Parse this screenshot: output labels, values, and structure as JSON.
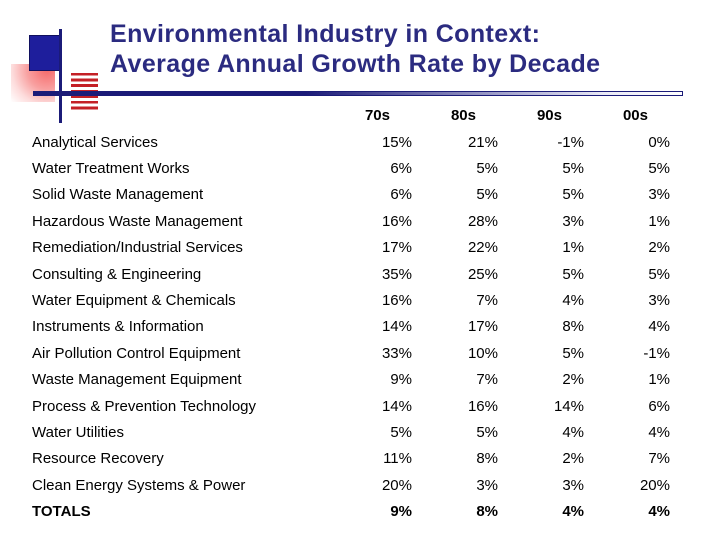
{
  "title": {
    "line1": "Environmental Industry in Context:",
    "line2": "Average Annual Growth Rate by Decade"
  },
  "colors": {
    "title": "#2b2b80",
    "accent_navy": "#1b1b78",
    "square_blue": "#1e1e9c",
    "stripe_red": "#c42026",
    "pink": "#f66a6a",
    "text": "#000000"
  },
  "table": {
    "headers": [
      "70s",
      "80s",
      "90s",
      "00s"
    ],
    "rows": [
      {
        "label": "Analytical Services",
        "values": [
          "15%",
          "21%",
          "-1%",
          "0%"
        ],
        "bold": false
      },
      {
        "label": "Water Treatment Works",
        "values": [
          "6%",
          "5%",
          "5%",
          "5%"
        ],
        "bold": false
      },
      {
        "label": "Solid Waste Management",
        "values": [
          "6%",
          "5%",
          "5%",
          "3%"
        ],
        "bold": false
      },
      {
        "label": "Hazardous Waste Management",
        "values": [
          "16%",
          "28%",
          "3%",
          "1%"
        ],
        "bold": false
      },
      {
        "label": "Remediation/Industrial Services",
        "values": [
          "17%",
          "22%",
          "1%",
          "2%"
        ],
        "bold": false
      },
      {
        "label": "Consulting & Engineering",
        "values": [
          "35%",
          "25%",
          "5%",
          "5%"
        ],
        "bold": false
      },
      {
        "label": "Water Equipment & Chemicals",
        "values": [
          "16%",
          "7%",
          "4%",
          "3%"
        ],
        "bold": false
      },
      {
        "label": "Instruments & Information",
        "values": [
          "14%",
          "17%",
          "8%",
          "4%"
        ],
        "bold": false
      },
      {
        "label": "Air Pollution Control Equipment",
        "values": [
          "33%",
          "10%",
          "5%",
          "-1%"
        ],
        "bold": false
      },
      {
        "label": "Waste Management Equipment",
        "values": [
          "9%",
          "7%",
          "2%",
          "1%"
        ],
        "bold": false
      },
      {
        "label": "Process & Prevention Technology",
        "values": [
          "14%",
          "16%",
          "14%",
          "6%"
        ],
        "bold": false
      },
      {
        "label": "Water Utilities",
        "values": [
          "5%",
          "5%",
          "4%",
          "4%"
        ],
        "bold": false
      },
      {
        "label": "Resource Recovery",
        "values": [
          "11%",
          "8%",
          "2%",
          "7%"
        ],
        "bold": false
      },
      {
        "label": "Clean Energy Systems & Power",
        "values": [
          "20%",
          "3%",
          "3%",
          "20%"
        ],
        "bold": false
      },
      {
        "label": "TOTALS",
        "values": [
          "9%",
          "8%",
          "4%",
          "4%"
        ],
        "bold": true
      }
    ]
  },
  "chart_data": {
    "type": "table",
    "title": "Environmental Industry in Context: Average Annual Growth Rate by Decade",
    "columns": [
      "70s",
      "80s",
      "90s",
      "00s"
    ],
    "row_labels": [
      "Analytical Services",
      "Water Treatment Works",
      "Solid Waste Management",
      "Hazardous Waste Management",
      "Remediation/Industrial Services",
      "Consulting & Engineering",
      "Water Equipment & Chemicals",
      "Instruments & Information",
      "Air Pollution Control Equipment",
      "Waste Management Equipment",
      "Process & Prevention Technology",
      "Water Utilities",
      "Resource Recovery",
      "Clean Energy Systems & Power",
      "TOTALS"
    ],
    "values_percent": [
      [
        15,
        21,
        -1,
        0
      ],
      [
        6,
        5,
        5,
        5
      ],
      [
        6,
        5,
        5,
        3
      ],
      [
        16,
        28,
        3,
        1
      ],
      [
        17,
        22,
        1,
        2
      ],
      [
        35,
        25,
        5,
        5
      ],
      [
        16,
        7,
        4,
        3
      ],
      [
        14,
        17,
        8,
        4
      ],
      [
        33,
        10,
        5,
        -1
      ],
      [
        9,
        7,
        2,
        1
      ],
      [
        14,
        16,
        14,
        6
      ],
      [
        5,
        5,
        4,
        4
      ],
      [
        11,
        8,
        2,
        7
      ],
      [
        20,
        3,
        3,
        20
      ],
      [
        9,
        8,
        4,
        4
      ]
    ]
  }
}
